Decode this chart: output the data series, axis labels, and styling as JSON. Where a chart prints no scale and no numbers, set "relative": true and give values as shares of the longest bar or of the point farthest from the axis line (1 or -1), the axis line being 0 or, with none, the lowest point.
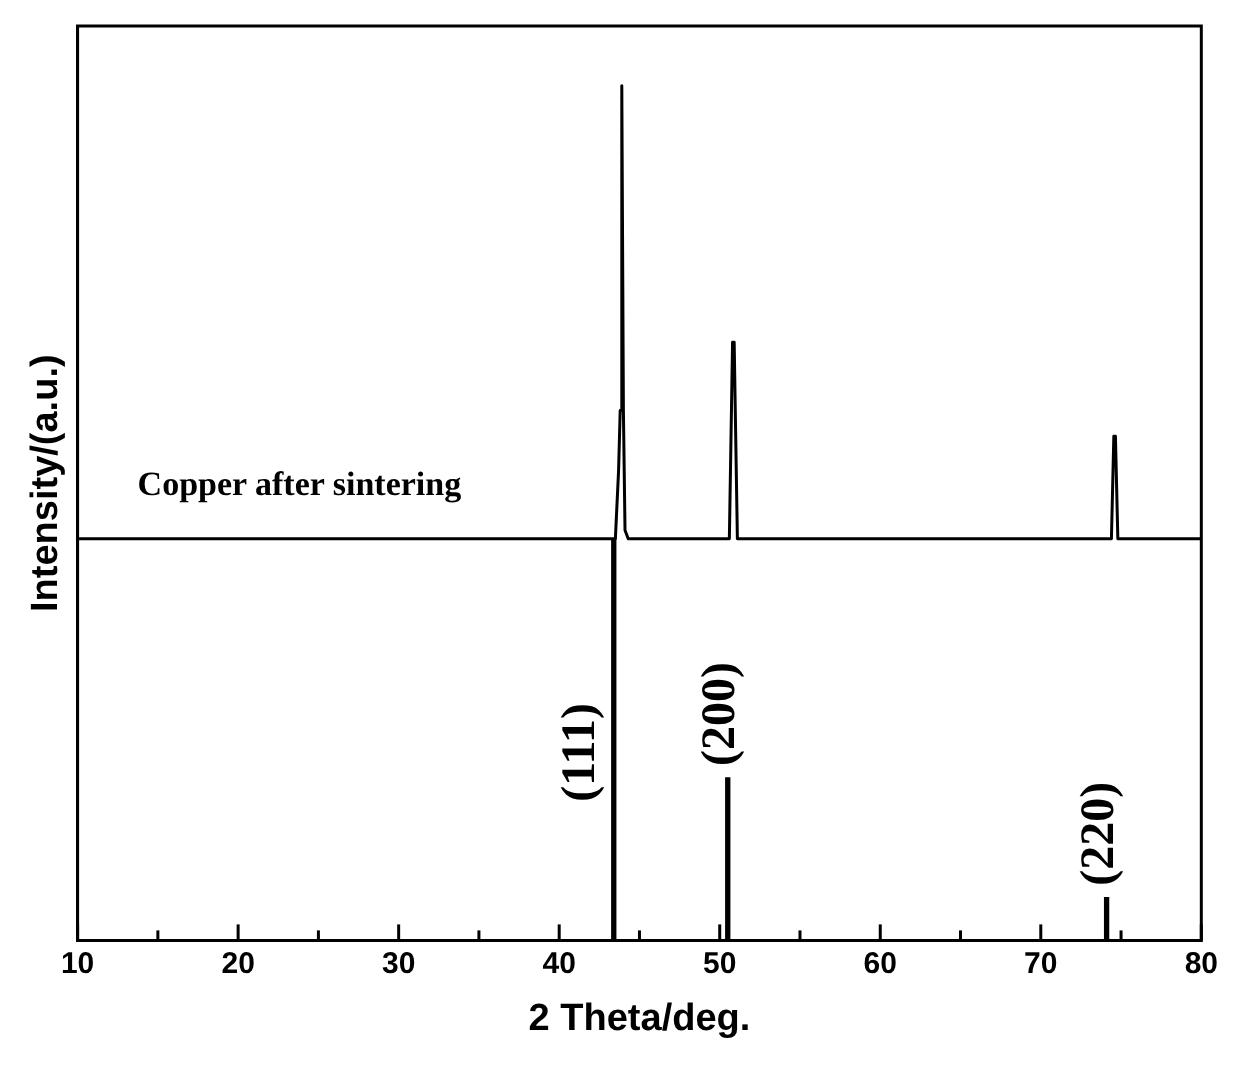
{
  "chart_data": {
    "type": "line",
    "xlabel": "2 Theta/deg.",
    "ylabel": "Intensity/(a.u.)",
    "relative": true,
    "tick_labels": "x",
    "grid": false,
    "legend": false,
    "marker": "none",
    "line_style": "solid",
    "xlim": [
      10,
      80
    ],
    "xticks": [
      10,
      {
        "value": 15,
        "label": null
      },
      20,
      {
        "value": 25,
        "label": null
      },
      30,
      {
        "value": 35,
        "label": null
      },
      40,
      {
        "value": 45,
        "label": null
      },
      50,
      {
        "value": 55,
        "label": null
      },
      60,
      {
        "value": 65,
        "label": null
      },
      70,
      {
        "value": 75,
        "label": null
      },
      80
    ],
    "series": [
      {
        "name": "Copper after sintering",
        "color": "#000000",
        "x": [
          10,
          20,
          30,
          40,
          43.5,
          43.7,
          43.8,
          43.9,
          44.0,
          44.1,
          44.3,
          47,
          50.6,
          50.8,
          50.9,
          51.1,
          60,
          70,
          74.4,
          74.55,
          74.65,
          74.8,
          80
        ],
        "values": [
          0.47,
          0.47,
          0.47,
          0.47,
          0.47,
          0.55,
          0.62,
          1.0,
          0.62,
          0.48,
          0.47,
          0.47,
          0.47,
          0.7,
          0.7,
          0.47,
          0.47,
          0.47,
          0.47,
          0.59,
          0.59,
          0.47,
          0.47
        ]
      },
      {
        "type": "bar",
        "color": "#000000",
        "x": [
          43.4,
          50.5,
          74.1
        ],
        "values": [
          0.47,
          0.19,
          0.05
        ]
      }
    ],
    "annotations": [
      {
        "text": "(111)",
        "x": 43.4,
        "y": 0.22
      },
      {
        "text": "(200)",
        "x": 50.5,
        "y": 0.19
      },
      {
        "text": "(220)",
        "x": 74.1,
        "y": 0.05
      }
    ]
  }
}
